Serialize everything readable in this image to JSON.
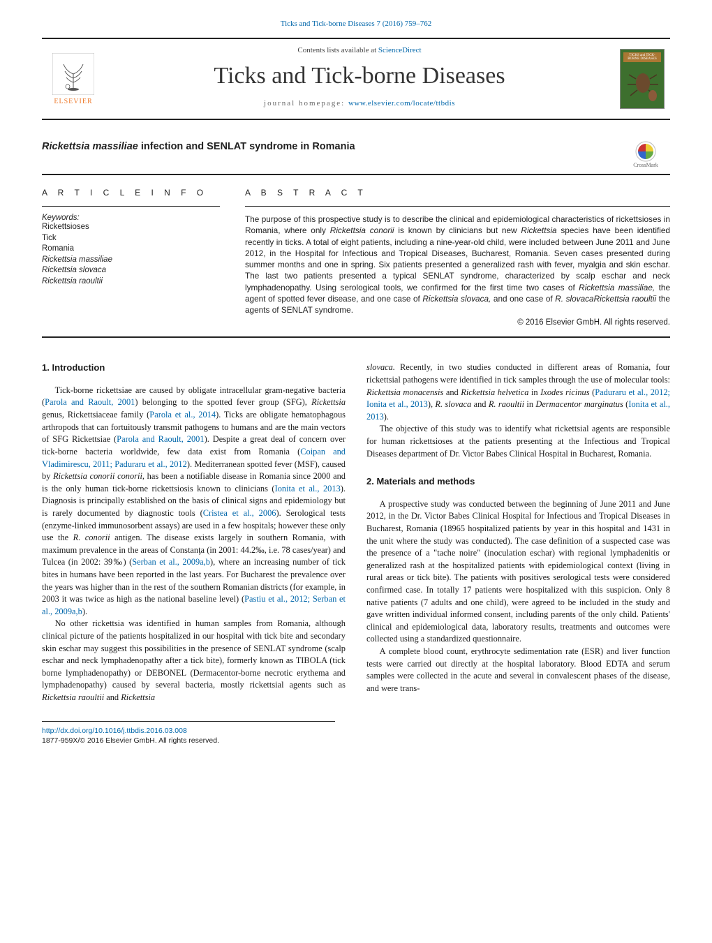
{
  "header": {
    "citation": "Ticks and Tick-borne Diseases 7 (2016) 759–762",
    "contents_prefix": "Contents lists available at ",
    "contents_link": "ScienceDirect",
    "journal_title": "Ticks and Tick-borne Diseases",
    "homepage_prefix": "journal homepage: ",
    "homepage_link": "www.elsevier.com/locate/ttbdis",
    "publisher": "ELSEVIER",
    "cover_label": "TICKS and TICK-BORNE DISEASES",
    "crossmark": "CrossMark"
  },
  "article": {
    "title_pre": "Rickettsia massiliae",
    "title_post": " infection and SENLAT syndrome in Romania"
  },
  "info": {
    "head": "A R T I C L E  I N F O",
    "keywords_label": "Keywords:",
    "keywords": [
      {
        "t": "Rickettsioses",
        "ital": false
      },
      {
        "t": "Tick",
        "ital": false
      },
      {
        "t": "Romania",
        "ital": false
      },
      {
        "t": "Rickettsia massiliae",
        "ital": true
      },
      {
        "t": "Rickettsia slovaca",
        "ital": true
      },
      {
        "t": "Rickettsia raoultii",
        "ital": true
      }
    ]
  },
  "abstract": {
    "head": "A B S T R A C T",
    "text_parts": [
      {
        "t": "The purpose of this prospective study is to describe the clinical and epidemiological characteristics of rickettsioses in Romania, where only ",
        "ital": false
      },
      {
        "t": "Rickettsia conorii",
        "ital": true
      },
      {
        "t": " is known by clinicians but new ",
        "ital": false
      },
      {
        "t": "Rickettsia",
        "ital": true
      },
      {
        "t": " species have been identified recently in ticks. A total of eight patients, including a nine-year-old child, were included between June 2011 and June 2012, in the Hospital for Infectious and Tropical Diseases, Bucharest, Romania. Seven cases presented during summer months and one in spring. Six patients presented a generalized rash with fever, myalgia and skin eschar. The last two patients presented a typical SENLAT syndrome, characterized by scalp eschar and neck lymphadenopathy. Using serological tools, we confirmed for the first time two cases of ",
        "ital": false
      },
      {
        "t": "Rickettsia massiliae,",
        "ital": true
      },
      {
        "t": " the agent of spotted fever disease, and one case of ",
        "ital": false
      },
      {
        "t": "Rickettsia slovaca,",
        "ital": true
      },
      {
        "t": " and one case of ",
        "ital": false
      },
      {
        "t": "R. slovacaRickettsia raoultii",
        "ital": true
      },
      {
        "t": " the agents of SENLAT syndrome.",
        "ital": false
      }
    ],
    "copyright": "© 2016 Elsevier GmbH. All rights reserved."
  },
  "body": {
    "sec1_head": "1. Introduction",
    "sec2_head": "2. Materials and methods",
    "p1_runs": [
      {
        "t": "Tick-borne rickettsiae are caused by obligate intracellular gram-negative bacteria (",
        "ref": false,
        "ital": false
      },
      {
        "t": "Parola and Raoult, 2001",
        "ref": true,
        "ital": false
      },
      {
        "t": ") belonging to the spotted fever group (SFG), ",
        "ref": false,
        "ital": false
      },
      {
        "t": "Rickettsia",
        "ref": false,
        "ital": true
      },
      {
        "t": " genus, Rickettsiaceae family (",
        "ref": false,
        "ital": false
      },
      {
        "t": "Parola et al., 2014",
        "ref": true,
        "ital": false
      },
      {
        "t": "). Ticks are obligate hematophagous arthropods that can fortuitously transmit pathogens to humans and are the main vectors of SFG Rickettsiae (",
        "ref": false,
        "ital": false
      },
      {
        "t": "Parola and Raoult, 2001",
        "ref": true,
        "ital": false
      },
      {
        "t": "). Despite a great deal of concern over tick-borne bacteria worldwide, few data exist from Romania (",
        "ref": false,
        "ital": false
      },
      {
        "t": "Coipan and Vladimirescu, 2011; Paduraru et al., 2012",
        "ref": true,
        "ital": false
      },
      {
        "t": "). Mediterranean spotted fever (MSF), caused by ",
        "ref": false,
        "ital": false
      },
      {
        "t": "Rickettsia conorii conorii,",
        "ref": false,
        "ital": true
      },
      {
        "t": " has been a notifiable disease in Romania since 2000 and is the only human tick-borne rickettsiosis known to clinicians (",
        "ref": false,
        "ital": false
      },
      {
        "t": "Ionita et al., 2013",
        "ref": true,
        "ital": false
      },
      {
        "t": "). Diagnosis is principally established on the basis of clinical signs and epidemiology but is rarely documented by diagnostic tools (",
        "ref": false,
        "ital": false
      },
      {
        "t": "Cristea et al., 2006",
        "ref": true,
        "ital": false
      },
      {
        "t": "). Serological tests (enzyme-linked immunosorbent assays) are used in a few hospitals; however these only use the ",
        "ref": false,
        "ital": false
      },
      {
        "t": "R. conorii",
        "ref": false,
        "ital": true
      },
      {
        "t": " antigen. The disease exists largely in southern Romania, with maximum prevalence in the areas of Constanţa (in 2001: 44.2‰, i.e. 78 cases/year) and Tulcea (in 2002: 39‰) (",
        "ref": false,
        "ital": false
      },
      {
        "t": "Serban et al., 2009a,b",
        "ref": true,
        "ital": false
      },
      {
        "t": "), where an increasing number of tick bites in humans have been reported in the last years. For Bucharest the prevalence over the years was higher than in the rest of the southern Romanian districts (for example, in 2003 it was twice as high as the national baseline level) (",
        "ref": false,
        "ital": false
      },
      {
        "t": "Pastiu et al., 2012; Serban et al., 2009a,b",
        "ref": true,
        "ital": false
      },
      {
        "t": ").",
        "ref": false,
        "ital": false
      }
    ],
    "p2_runs": [
      {
        "t": "No other rickettsia was identified in human samples from Romania, although clinical picture of the patients hospitalized in our hospital with tick bite and secondary skin eschar may suggest this possibilities in the presence of SENLAT syndrome (scalp eschar and neck lymphadenopathy after a tick bite), formerly known as TIBOLA (tick borne lymphadenopathy) or DEBONEL (Dermacentor-borne necrotic erythema and lymphadenopathy) caused by several bacteria, mostly rickettsial agents such as ",
        "ref": false,
        "ital": false
      },
      {
        "t": "Rickettsia raoultii",
        "ref": false,
        "ital": true
      },
      {
        "t": " and ",
        "ref": false,
        "ital": false
      },
      {
        "t": "Rickettsia",
        "ref": false,
        "ital": true
      }
    ],
    "p3_runs": [
      {
        "t": "slovaca.",
        "ref": false,
        "ital": true
      },
      {
        "t": " Recently, in two studies conducted in different areas of Romania, four rickettsial pathogens were identified in tick samples through the use of molecular tools: ",
        "ref": false,
        "ital": false
      },
      {
        "t": "Rickettsia monacensis",
        "ref": false,
        "ital": true
      },
      {
        "t": " and ",
        "ref": false,
        "ital": false
      },
      {
        "t": "Rickettsia helvetica",
        "ref": false,
        "ital": true
      },
      {
        "t": " in ",
        "ref": false,
        "ital": false
      },
      {
        "t": "Ixodes ricinus",
        "ref": false,
        "ital": true
      },
      {
        "t": " (",
        "ref": false,
        "ital": false
      },
      {
        "t": "Paduraru et al., 2012; Ionita et al., 2013",
        "ref": true,
        "ital": false
      },
      {
        "t": "), ",
        "ref": false,
        "ital": false
      },
      {
        "t": "R. slovaca",
        "ref": false,
        "ital": true
      },
      {
        "t": " and ",
        "ref": false,
        "ital": false
      },
      {
        "t": "R. raoultii",
        "ref": false,
        "ital": true
      },
      {
        "t": " in ",
        "ref": false,
        "ital": false
      },
      {
        "t": "Dermacentor marginatus",
        "ref": false,
        "ital": true
      },
      {
        "t": " (",
        "ref": false,
        "ital": false
      },
      {
        "t": "Ionita et al., 2013",
        "ref": true,
        "ital": false
      },
      {
        "t": ").",
        "ref": false,
        "ital": false
      }
    ],
    "p4": "The objective of this study was to identify what rickettsial agents are responsible for human rickettsioses at the patients presenting at the Infectious and Tropical Diseases department of Dr. Victor Babes Clinical Hospital in Bucharest, Romania.",
    "p5": "A prospective study was conducted between the beginning of June 2011 and June 2012, in the Dr. Victor Babes Clinical Hospital for Infectious and Tropical Diseases in Bucharest, Romania (18965 hospitalized patients by year in this hospital and 1431 in the unit where the study was conducted). The case definition of a suspected case was the presence of a \"tache noire\" (inoculation eschar) with regional lymphadenitis or generalized rash at the hospitalized patients with epidemiological context (living in rural areas or tick bite). The patients with positives serological tests were considered confirmed case. In totally 17 patients were hospitalized with this suspicion. Only 8 native patients (7 adults and one child), were agreed to be included in the study and gave written individual informed consent, including parents of the only child. Patients' clinical and epidemiological data, laboratory results, treatments and outcomes were collected using a standardized questionnaire.",
    "p6": "A complete blood count, erythrocyte sedimentation rate (ESR) and liver function tests were carried out directly at the hospital laboratory. Blood EDTA and serum samples were collected in the acute and several in convalescent phases of the disease, and were trans-"
  },
  "footer": {
    "doi": "http://dx.doi.org/10.1016/j.ttbdis.2016.03.008",
    "issn": "1877-959X/© 2016 Elsevier GmbH. All rights reserved."
  },
  "colors": {
    "link": "#0066aa",
    "text": "#1a1a1a",
    "elsevier_orange": "#ee7b2d",
    "cover_green": "#3d6f2e",
    "cover_band": "#aa7733",
    "crossmark_red": "#cc3333",
    "crossmark_yellow": "#eecc33",
    "crossmark_blue": "#3366cc",
    "crossmark_green": "#66aa44"
  }
}
